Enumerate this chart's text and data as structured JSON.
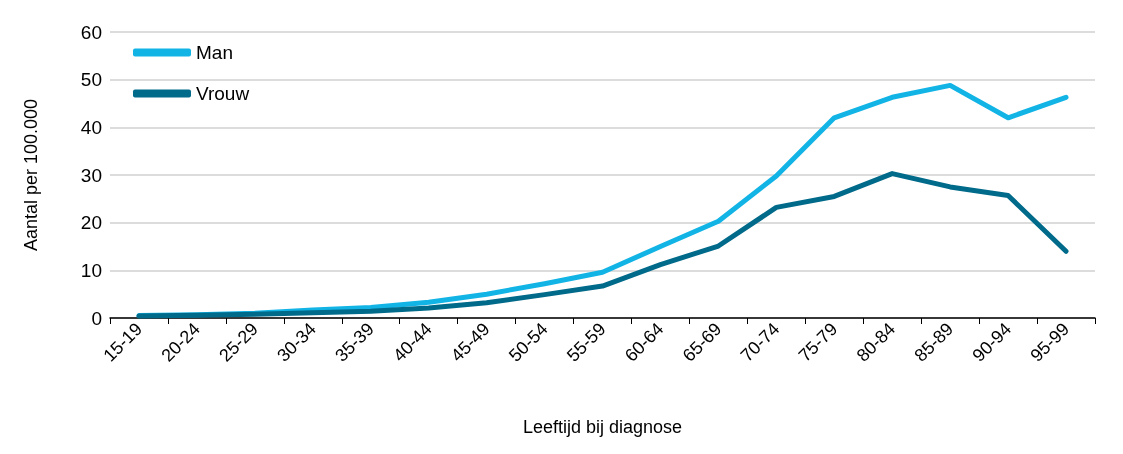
{
  "chart_data": {
    "type": "line",
    "xlabel": "Leeftijd bij diagnose",
    "ylabel": "Aantal per 100.000",
    "categories": [
      "15-19",
      "20-24",
      "25-29",
      "30-34",
      "35-39",
      "40-44",
      "45-49",
      "50-54",
      "55-59",
      "60-64",
      "65-69",
      "70-74",
      "75-79",
      "80-84",
      "85-89",
      "90-94",
      "95-99"
    ],
    "series": [
      {
        "name": "Man",
        "color": "#12b4e6",
        "values": [
          0.5,
          0.7,
          1,
          1.7,
          2.2,
          3.3,
          5,
          7.2,
          9.6,
          15,
          20.3,
          29.8,
          42,
          46.3,
          48.8,
          42,
          46.3
        ]
      },
      {
        "name": "Vrouw",
        "color": "#006a8a",
        "values": [
          0.4,
          0.6,
          0.8,
          1.1,
          1.4,
          2.1,
          3.2,
          4.9,
          6.7,
          11.2,
          15.1,
          23.2,
          25.5,
          30.3,
          27.5,
          25.7,
          14
        ]
      }
    ],
    "ylim": [
      0,
      60
    ],
    "yticks": [
      0,
      10,
      20,
      30,
      40,
      50,
      60
    ],
    "grid": "y",
    "legend": "top left",
    "marker": "none",
    "line_style": "solid"
  }
}
